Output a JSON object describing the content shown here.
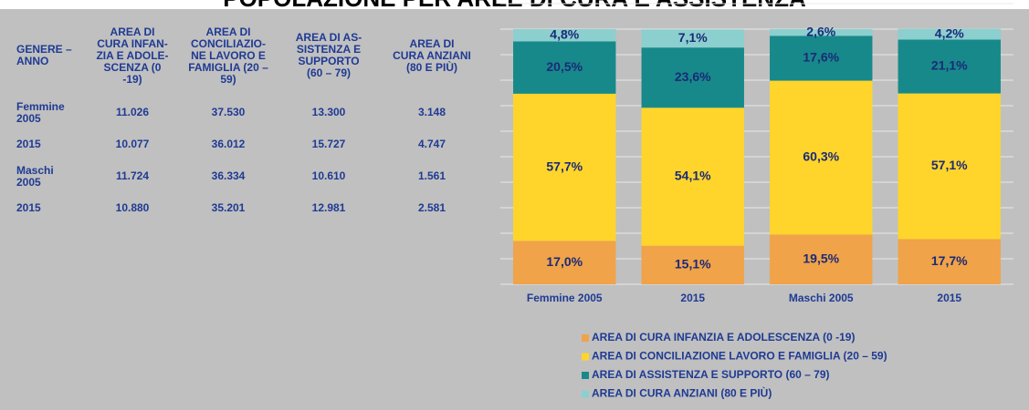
{
  "title": "POPOLAZIONE PER AREE DI CURA E ASSISTENZA",
  "table": {
    "header": [
      "GENERE –\nANNO",
      "AREA DI\nCURA INFAN-\nZIA E ADOLE-\nSCENZA (0\n-19)",
      "AREA DI\nCONCILIAZIO-\nNE LAVORO E\nFAMIGLIA (20 –\n59)",
      "AREA DI AS-\nSISTENZA E\nSUPPORTO\n(60 – 79)",
      "AREA DI\nCURA ANZIANI\n(80 E PIÙ)"
    ],
    "rows": [
      [
        "Femmine\n2005",
        "11.026",
        "37.530",
        "13.300",
        "3.148"
      ],
      [
        "2015",
        "10.077",
        "36.012",
        "15.727",
        "4.747"
      ],
      [
        "Maschi\n2005",
        "11.724",
        "36.334",
        "10.610",
        "1.561"
      ],
      [
        "2015",
        "10.880",
        "35.201",
        "12.981",
        "2.581"
      ]
    ]
  },
  "chart_data": {
    "type": "stacked_bar",
    "categories": [
      "Femmine 2005",
      "2015",
      "Maschi 2005",
      "2015"
    ],
    "series": [
      {
        "name": "AREA DI CURA INFANZIA E ADOLESCENZA (0 -19)",
        "color": "#f0a348",
        "values": [
          17.0,
          15.1,
          19.5,
          17.7
        ],
        "value_labels": [
          "17,0%",
          "15,1%",
          "19,5%",
          "17,7%"
        ]
      },
      {
        "name": "AREA DI CONCILIAZIONE LAVORO E FAMIGLIA (20 – 59)",
        "color": "#ffd52b",
        "values": [
          57.7,
          54.1,
          60.3,
          57.1
        ],
        "value_labels": [
          "57,7%",
          "54,1%",
          "60,3%",
          "57,1%"
        ]
      },
      {
        "name": "AREA DI ASSISTENZA E SUPPORTO (60 – 79)",
        "color": "#17898a",
        "values": [
          20.5,
          23.6,
          17.6,
          21.1
        ],
        "value_labels": [
          "20,5%",
          "23,6%",
          "17,6%",
          "21,1%"
        ]
      },
      {
        "name": "AREA DI CURA ANZIANI (80 E PIÙ)",
        "color": "#8ccfcf",
        "values": [
          4.8,
          7.1,
          2.6,
          4.2
        ],
        "value_labels": [
          "4,8%",
          "7,1%",
          "2,6%",
          "4,2%"
        ]
      }
    ],
    "ylim": [
      0,
      110
    ],
    "yticks": [
      0,
      10,
      20,
      30,
      40,
      50,
      60,
      70,
      80,
      90,
      100,
      110
    ],
    "grid": true
  }
}
